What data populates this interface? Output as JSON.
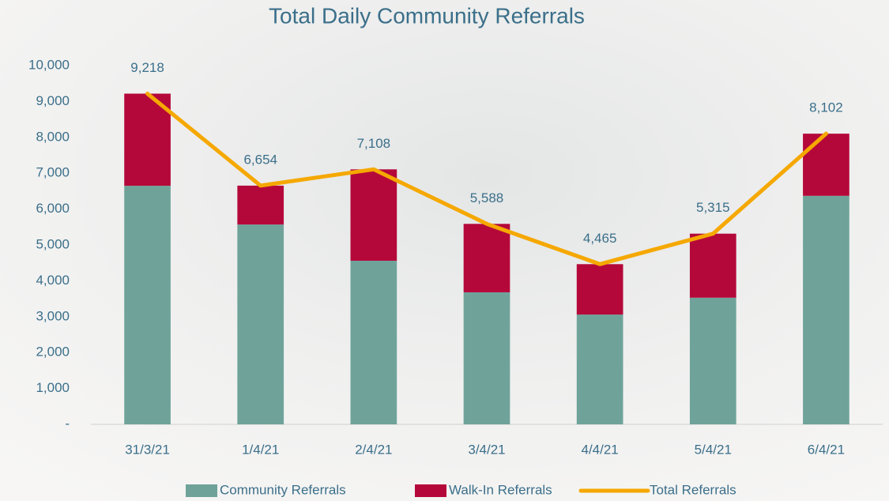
{
  "chart_data": {
    "type": "bar",
    "stacked": true,
    "title": "Total Daily Community Referrals",
    "categories": [
      "31/3/21",
      "1/4/21",
      "2/4/21",
      "3/4/21",
      "4/4/21",
      "5/4/21",
      "6/4/21"
    ],
    "series": [
      {
        "name": "Community Referrals",
        "type": "bar",
        "color": "#6fa39a",
        "values": [
          6650,
          5570,
          4560,
          3680,
          3060,
          3530,
          6370
        ]
      },
      {
        "name": "Walk-In Referrals",
        "type": "bar",
        "color": "#b5083a",
        "values": [
          2568,
          1084,
          2548,
          1908,
          1405,
          1785,
          1732
        ]
      },
      {
        "name": "Total Referrals",
        "type": "line",
        "color": "#f5a800",
        "values": [
          9218,
          6654,
          7108,
          5588,
          4465,
          5315,
          8102
        ],
        "value_labels": [
          "9,218",
          "6,654",
          "7,108",
          "5,588",
          "4,465",
          "5,315",
          "8,102"
        ]
      }
    ],
    "ylim": [
      0,
      10000
    ],
    "yticks": [
      {
        "value": 0,
        "label": "-"
      },
      {
        "value": 1000,
        "label": "1,000"
      },
      {
        "value": 2000,
        "label": "2,000"
      },
      {
        "value": 3000,
        "label": "3,000"
      },
      {
        "value": 4000,
        "label": "4,000"
      },
      {
        "value": 5000,
        "label": "5,000"
      },
      {
        "value": 6000,
        "label": "6,000"
      },
      {
        "value": 7000,
        "label": "7,000"
      },
      {
        "value": 8000,
        "label": "8,000"
      },
      {
        "value": 9000,
        "label": "9,000"
      },
      {
        "value": 10000,
        "label": "10,000"
      }
    ],
    "grid": false,
    "legend": "bottom"
  }
}
